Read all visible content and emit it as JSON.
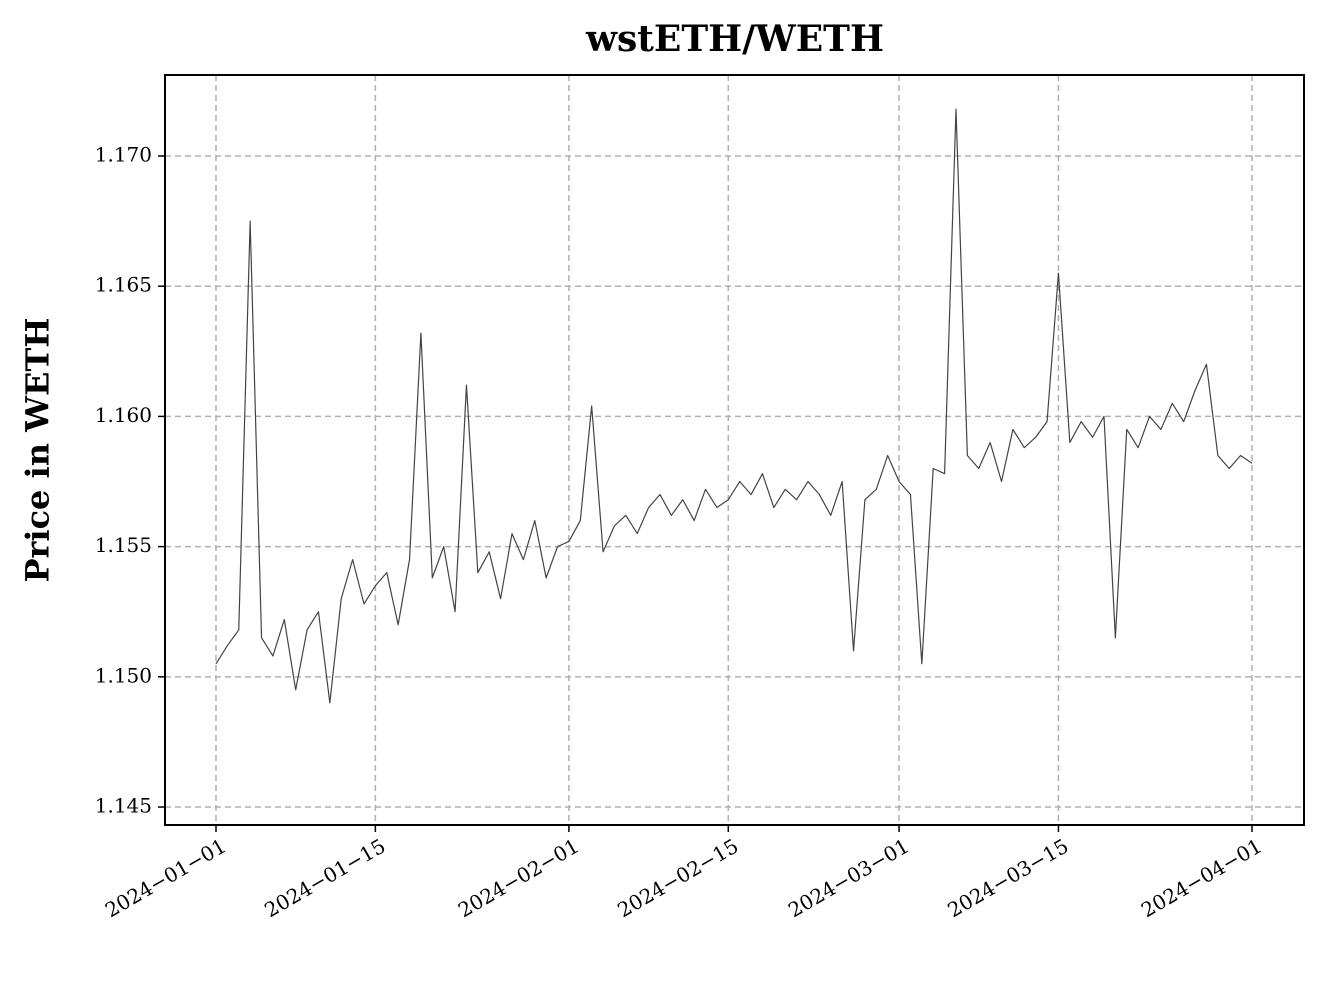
{
  "chart_data": {
    "type": "line",
    "title": "wstETH/WETH",
    "y_label": "Price in WETH",
    "x": [
      "2024-01-01",
      "2024-01-02",
      "2024-01-03",
      "2024-01-04",
      "2024-01-05",
      "2024-01-06",
      "2024-01-07",
      "2024-01-08",
      "2024-01-09",
      "2024-01-10",
      "2024-01-11",
      "2024-01-12",
      "2024-01-13",
      "2024-01-14",
      "2024-01-15",
      "2024-01-16",
      "2024-01-17",
      "2024-01-18",
      "2024-01-19",
      "2024-01-20",
      "2024-01-21",
      "2024-01-22",
      "2024-01-23",
      "2024-01-24",
      "2024-01-25",
      "2024-01-26",
      "2024-01-27",
      "2024-01-28",
      "2024-01-29",
      "2024-01-30",
      "2024-01-31",
      "2024-02-01",
      "2024-02-02",
      "2024-02-03",
      "2024-02-04",
      "2024-02-05",
      "2024-02-06",
      "2024-02-07",
      "2024-02-08",
      "2024-02-09",
      "2024-02-10",
      "2024-02-11",
      "2024-02-12",
      "2024-02-13",
      "2024-02-14",
      "2024-02-15",
      "2024-02-16",
      "2024-02-17",
      "2024-02-18",
      "2024-02-19",
      "2024-02-20",
      "2024-02-21",
      "2024-02-22",
      "2024-02-23",
      "2024-02-24",
      "2024-02-25",
      "2024-02-26",
      "2024-02-27",
      "2024-02-28",
      "2024-02-29",
      "2024-03-01",
      "2024-03-02",
      "2024-03-03",
      "2024-03-04",
      "2024-03-05",
      "2024-03-06",
      "2024-03-07",
      "2024-03-08",
      "2024-03-09",
      "2024-03-10",
      "2024-03-11",
      "2024-03-12",
      "2024-03-13",
      "2024-03-14",
      "2024-03-15",
      "2024-03-16",
      "2024-03-17",
      "2024-03-18",
      "2024-03-19",
      "2024-03-20",
      "2024-03-21",
      "2024-03-22",
      "2024-03-23",
      "2024-03-24",
      "2024-03-25",
      "2024-03-26",
      "2024-03-27",
      "2024-03-28",
      "2024-03-29",
      "2024-03-30",
      "2024-03-31",
      "2024-04-01"
    ],
    "series": [
      {
        "color": "#444444",
        "values": [
          1.1505,
          1.1512,
          1.1518,
          1.1675,
          1.1515,
          1.1508,
          1.1522,
          1.1495,
          1.1518,
          1.1525,
          1.149,
          1.153,
          1.1545,
          1.1528,
          1.1535,
          1.154,
          1.152,
          1.1545,
          1.1632,
          1.1538,
          1.155,
          1.1525,
          1.1612,
          1.154,
          1.1548,
          1.153,
          1.1555,
          1.1545,
          1.156,
          1.1538,
          1.155,
          1.1552,
          1.156,
          1.1604,
          1.1548,
          1.1558,
          1.1562,
          1.1555,
          1.1565,
          1.157,
          1.1562,
          1.1568,
          1.156,
          1.1572,
          1.1565,
          1.1568,
          1.1575,
          1.157,
          1.1578,
          1.1565,
          1.1572,
          1.1568,
          1.1575,
          1.157,
          1.1562,
          1.1575,
          1.151,
          1.1568,
          1.1572,
          1.1585,
          1.1575,
          1.157,
          1.1505,
          1.158,
          1.1578,
          1.1718,
          1.1585,
          1.158,
          1.159,
          1.1575,
          1.1595,
          1.1588,
          1.1592,
          1.1598,
          1.1655,
          1.159,
          1.1598,
          1.1592,
          1.16,
          1.1515,
          1.1595,
          1.1588,
          1.16,
          1.1595,
          1.1605,
          1.1598,
          1.161,
          1.162,
          1.1585,
          1.158,
          1.1585,
          1.1582
        ]
      }
    ],
    "xlim": [
      "2023-12-27T12:30Z",
      "2024-04-05T13:40Z"
    ],
    "xticks": [
      {
        "value": "2024-01-01",
        "label": "2024−01−01"
      },
      {
        "value": "2024-01-15",
        "label": "2024−01−15"
      },
      {
        "value": "2024-02-01",
        "label": "2024−02−01"
      },
      {
        "value": "2024-02-15",
        "label": "2024−02−15"
      },
      {
        "value": "2024-03-01",
        "label": "2024−03−01"
      },
      {
        "value": "2024-03-15",
        "label": "2024−03−15"
      },
      {
        "value": "2024-04-01",
        "label": "2024−04−01"
      }
    ],
    "ylim": [
      1.14431,
      1.17311
    ],
    "yticks": [
      1.145,
      {
        "value": 1.15,
        "label": "1.150"
      },
      1.155,
      {
        "value": 1.16,
        "label": "1.160"
      },
      1.165,
      {
        "value": 1.17,
        "label": "1.170"
      }
    ],
    "grid": true
  }
}
